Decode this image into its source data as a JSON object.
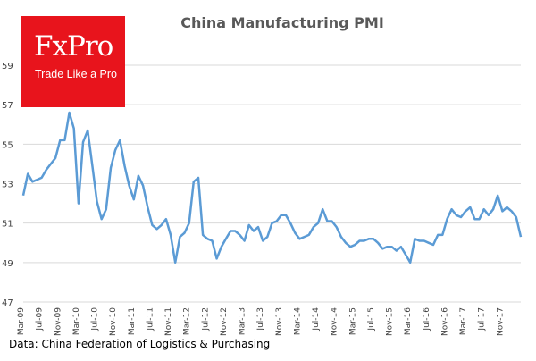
{
  "logo": {
    "brand": "FxPro",
    "tagline": "Trade Like a Pro"
  },
  "source": "Data: China Federation of Logistics & Purchasing",
  "colors": {
    "line": "#5b9bd5",
    "grid": "#d9d9d9",
    "logo_bg": "#e8141c"
  },
  "chart_data": {
    "type": "line",
    "title": "China  Manufacturing  PMI",
    "xlabel": "",
    "ylabel": "",
    "ylim": [
      47,
      59
    ],
    "yticks": [
      47,
      49,
      51,
      53,
      55,
      57,
      59
    ],
    "grid": "horizontal",
    "x_start": "Mar-09",
    "x_end": "Jan-18",
    "xtick_labels": [
      "Mar-09",
      "Jul-09",
      "Nov-09",
      "Mar-10",
      "Jul-10",
      "Nov-10",
      "Mar-11",
      "Jul-11",
      "Nov-11",
      "Mar-12",
      "Jul-12",
      "Nov-12",
      "Mar-13",
      "Jul-13",
      "Nov-13",
      "Mar-14",
      "Jul-14",
      "Nov-14",
      "Mar-15",
      "Jul-15",
      "Nov-15",
      "Mar-16",
      "Jul-16",
      "Nov-16",
      "Mar-17",
      "Jul-17",
      "Nov-17"
    ],
    "series": [
      {
        "values": [
          52.4,
          53.5,
          53.1,
          53.2,
          53.3,
          53.7,
          54.0,
          54.3,
          55.2,
          55.2,
          56.6,
          55.8,
          52.0,
          55.1,
          55.7,
          53.9,
          52.1,
          51.2,
          51.7,
          53.8,
          54.7,
          55.2,
          53.9,
          52.9,
          52.2,
          53.4,
          52.9,
          51.8,
          50.9,
          50.7,
          50.9,
          51.2,
          50.4,
          49.0,
          50.3,
          50.5,
          51.0,
          53.1,
          53.3,
          50.4,
          50.2,
          50.1,
          49.2,
          49.8,
          50.2,
          50.6,
          50.6,
          50.4,
          50.1,
          50.9,
          50.6,
          50.8,
          50.1,
          50.3,
          51.0,
          51.1,
          51.4,
          51.4,
          51.0,
          50.5,
          50.2,
          50.3,
          50.4,
          50.8,
          51.0,
          51.7,
          51.1,
          51.1,
          50.8,
          50.3,
          50.0,
          49.8,
          49.9,
          50.1,
          50.1,
          50.2,
          50.2,
          50.0,
          49.7,
          49.8,
          49.8,
          49.6,
          49.8,
          49.4,
          49.0,
          50.2,
          50.1,
          50.1,
          50.0,
          49.9,
          50.4,
          50.4,
          51.2,
          51.7,
          51.4,
          51.3,
          51.6,
          51.8,
          51.2,
          51.2,
          51.7,
          51.4,
          51.7,
          52.4,
          51.6,
          51.8,
          51.6,
          51.3,
          50.3
        ]
      }
    ]
  }
}
